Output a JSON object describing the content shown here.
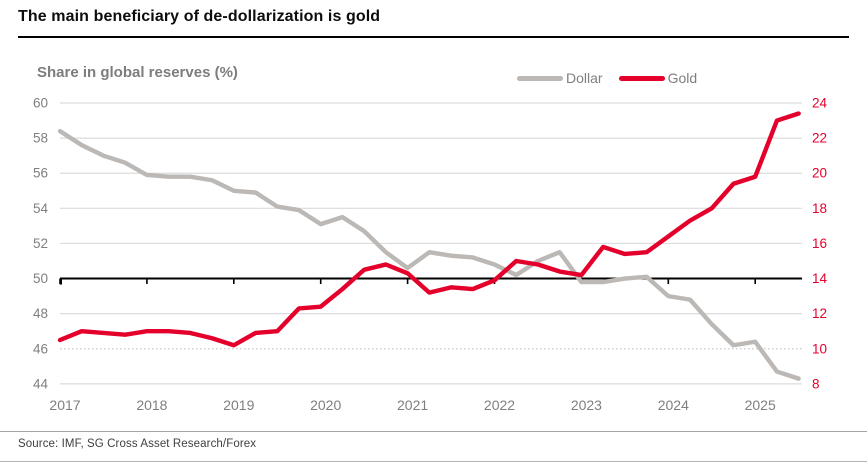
{
  "header": {
    "title": "The main beneficiary of de-dollarization is gold"
  },
  "chart": {
    "subtitle": "Share in global reserves (%)"
  },
  "footer": {
    "source": "Source: IMF, SG Cross Asset Research/Forex"
  },
  "colors": {
    "dollar": "#bbb8b5",
    "gold": "#e4002b",
    "grid": "#dcdcdc",
    "grid_dotted": "#c9c9c9",
    "baseline": "#000000",
    "axis_text": "#7f7f7f",
    "right_axis_text": "#e4002b"
  },
  "chart_data": {
    "type": "line",
    "title": "Share in global reserves (%)",
    "x": [
      2017,
      2017.25,
      2017.5,
      2017.75,
      2018,
      2018.25,
      2018.5,
      2018.75,
      2019,
      2019.25,
      2019.5,
      2019.75,
      2020,
      2020.25,
      2020.5,
      2020.75,
      2021,
      2021.25,
      2021.5,
      2021.75,
      2022,
      2022.25,
      2022.5,
      2022.75,
      2023,
      2023.25,
      2023.5,
      2023.75,
      2024,
      2024.25,
      2024.5,
      2024.75,
      2025,
      2025.25,
      2025.5
    ],
    "series": [
      {
        "name": "Dollar",
        "axis": "left",
        "color": "#bbb8b5",
        "values": [
          58.4,
          57.6,
          57.0,
          56.6,
          55.9,
          55.8,
          55.8,
          55.6,
          55.0,
          54.9,
          54.1,
          53.9,
          53.1,
          53.5,
          52.7,
          51.5,
          50.6,
          51.5,
          51.3,
          51.2,
          50.8,
          50.2,
          51.0,
          51.5,
          49.8,
          49.8,
          50.0,
          50.1,
          49.0,
          48.8,
          47.4,
          46.2,
          46.4,
          44.7,
          44.3
        ]
      },
      {
        "name": "Gold",
        "axis": "right",
        "color": "#e4002b",
        "values": [
          10.5,
          11.0,
          10.9,
          10.8,
          11.0,
          11.0,
          10.9,
          10.6,
          10.2,
          10.9,
          11.0,
          12.3,
          12.4,
          13.4,
          14.5,
          14.8,
          14.3,
          13.2,
          13.5,
          13.4,
          13.9,
          15.0,
          14.8,
          14.4,
          14.2,
          15.8,
          15.4,
          15.5,
          16.4,
          17.3,
          18.0,
          19.4,
          19.8,
          23.0,
          23.4
        ]
      }
    ],
    "left_axis": {
      "ticks": [
        60,
        58,
        56,
        54,
        52,
        50,
        48,
        46,
        44
      ],
      "range": [
        44,
        60
      ]
    },
    "right_axis": {
      "ticks": [
        24,
        22,
        20,
        18,
        16,
        14,
        12,
        10,
        8
      ],
      "range": [
        8,
        24
      ]
    },
    "x_ticks": [
      2017,
      2018,
      2019,
      2020,
      2021,
      2022,
      2023,
      2024,
      2025
    ],
    "baseline": {
      "left_value": 50,
      "right_value": 14
    },
    "grid": "horizontal",
    "legend_position": "top-right"
  }
}
